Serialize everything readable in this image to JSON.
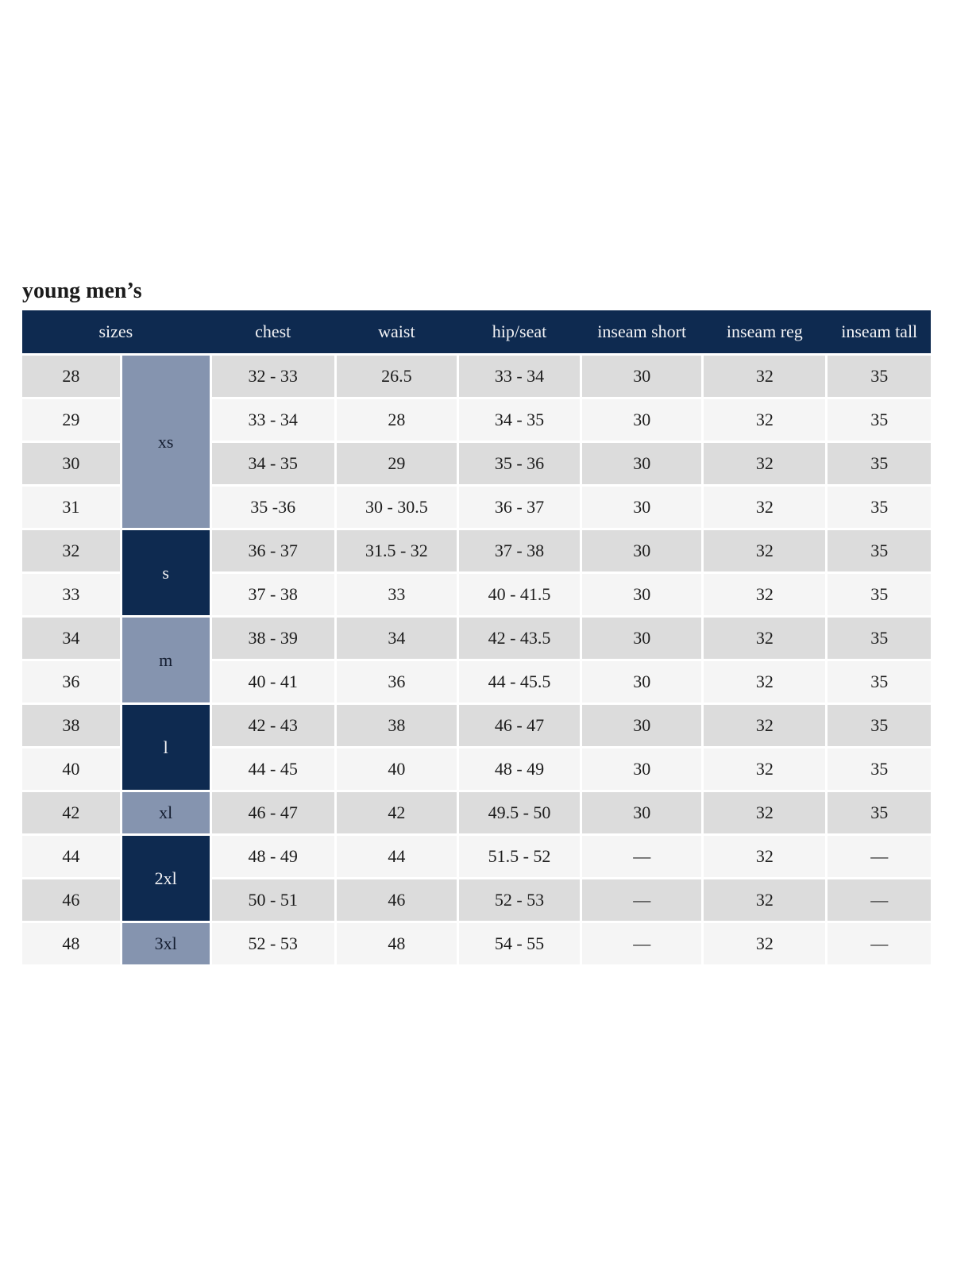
{
  "page": {
    "title": "young men’s"
  },
  "colors": {
    "navy": "#0e2a50",
    "steel_blue": "#8594af",
    "row_gray": "#dcdcdc",
    "row_light": "#f5f5f5",
    "header_text": "#f4f4f6",
    "body_text": "#1d1d1d"
  },
  "table": {
    "headers": [
      "sizes",
      "chest",
      "waist",
      "hip/seat",
      "inseam short",
      "inseam reg",
      "inseam tall"
    ],
    "size_groups": [
      {
        "label": "xs",
        "rows": 4,
        "style": "light"
      },
      {
        "label": "s",
        "rows": 2,
        "style": "dark"
      },
      {
        "label": "m",
        "rows": 2,
        "style": "light"
      },
      {
        "label": "l",
        "rows": 2,
        "style": "dark"
      },
      {
        "label": "xl",
        "rows": 1,
        "style": "light"
      },
      {
        "label": "2xl",
        "rows": 2,
        "style": "dark"
      },
      {
        "label": "3xl",
        "rows": 1,
        "style": "light"
      }
    ],
    "rows": [
      {
        "size": "28",
        "chest": "32 - 33",
        "waist": "26.5",
        "hip_seat": "33 - 34",
        "inseam_short": "30",
        "inseam_reg": "32",
        "inseam_tall": "35"
      },
      {
        "size": "29",
        "chest": "33 - 34",
        "waist": "28",
        "hip_seat": "34 - 35",
        "inseam_short": "30",
        "inseam_reg": "32",
        "inseam_tall": "35"
      },
      {
        "size": "30",
        "chest": "34 - 35",
        "waist": "29",
        "hip_seat": "35 - 36",
        "inseam_short": "30",
        "inseam_reg": "32",
        "inseam_tall": "35"
      },
      {
        "size": "31",
        "chest": "35 -36",
        "waist": "30 - 30.5",
        "hip_seat": "36 - 37",
        "inseam_short": "30",
        "inseam_reg": "32",
        "inseam_tall": "35"
      },
      {
        "size": "32",
        "chest": "36 - 37",
        "waist": "31.5 - 32",
        "hip_seat": "37 - 38",
        "inseam_short": "30",
        "inseam_reg": "32",
        "inseam_tall": "35"
      },
      {
        "size": "33",
        "chest": "37 - 38",
        "waist": "33",
        "hip_seat": "40 - 41.5",
        "inseam_short": "30",
        "inseam_reg": "32",
        "inseam_tall": "35"
      },
      {
        "size": "34",
        "chest": "38 - 39",
        "waist": "34",
        "hip_seat": "42 - 43.5",
        "inseam_short": "30",
        "inseam_reg": "32",
        "inseam_tall": "35"
      },
      {
        "size": "36",
        "chest": "40 - 41",
        "waist": "36",
        "hip_seat": "44 - 45.5",
        "inseam_short": "30",
        "inseam_reg": "32",
        "inseam_tall": "35"
      },
      {
        "size": "38",
        "chest": "42 - 43",
        "waist": "38",
        "hip_seat": "46 - 47",
        "inseam_short": "30",
        "inseam_reg": "32",
        "inseam_tall": "35"
      },
      {
        "size": "40",
        "chest": "44 - 45",
        "waist": "40",
        "hip_seat": "48 - 49",
        "inseam_short": "30",
        "inseam_reg": "32",
        "inseam_tall": "35"
      },
      {
        "size": "42",
        "chest": "46 - 47",
        "waist": "42",
        "hip_seat": "49.5 - 50",
        "inseam_short": "30",
        "inseam_reg": "32",
        "inseam_tall": "35"
      },
      {
        "size": "44",
        "chest": "48 - 49",
        "waist": "44",
        "hip_seat": "51.5 - 52",
        "inseam_short": "—",
        "inseam_reg": "32",
        "inseam_tall": "—"
      },
      {
        "size": "46",
        "chest": "50 - 51",
        "waist": "46",
        "hip_seat": "52 - 53",
        "inseam_short": "—",
        "inseam_reg": "32",
        "inseam_tall": "—"
      },
      {
        "size": "48",
        "chest": "52 - 53",
        "waist": "48",
        "hip_seat": "54 - 55",
        "inseam_short": "—",
        "inseam_reg": "32",
        "inseam_tall": "—"
      }
    ]
  }
}
